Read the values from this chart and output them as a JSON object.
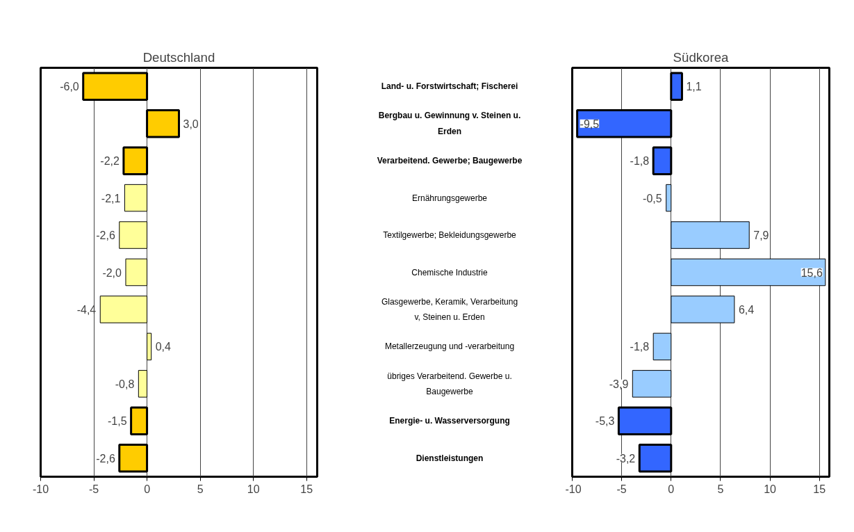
{
  "chart_data": [
    {
      "type": "bar",
      "orientation": "horizontal",
      "title": "Deutschland",
      "categories": [
        "Land- u. Forstwirtschaft; Fischerei",
        "Bergbau u. Gewinnung v. Steinen u. Erden",
        "Verarbeitend. Gewerbe; Baugewerbe",
        "Ernährungsgewerbe",
        "Textilgewerbe; Bekleidungsgewerbe",
        "Chemische Industrie",
        "Glasgewerbe, Keramik, Verarbeitung v, Steinen u. Erden",
        "Metallerzeugung und -verarbeitung",
        "übriges Verarbeitend. Gewerbe u. Baugewerbe",
        "Energie- u. Wasserversorgung",
        "Dienstleistungen"
      ],
      "values": [
        -6.0,
        3.0,
        -2.2,
        -2.1,
        -2.6,
        -2.0,
        -4.4,
        0.4,
        -0.8,
        -1.5,
        -2.6
      ],
      "colors": [
        "#ffcc00",
        "#ffcc00",
        "#ffcc00",
        "#ffff99",
        "#ffff99",
        "#ffff99",
        "#ffff99",
        "#ffff99",
        "#ffff99",
        "#ffcc00",
        "#ffcc00"
      ],
      "value_labels": [
        "-6,0",
        "3,0",
        "-2,2",
        "-2,1",
        "-2,6",
        "-2,0",
        "-4,4",
        "0,4",
        "-0,8",
        "-1,5",
        "-2,6"
      ],
      "xlim": [
        -10,
        16
      ],
      "xticks": [
        -10,
        -5,
        0,
        5,
        10,
        15
      ],
      "grid": "x",
      "tick_labels": "x"
    },
    {
      "type": "bar",
      "orientation": "horizontal",
      "title": "Südkorea",
      "categories": [
        "Land- u. Forstwirtschaft; Fischerei",
        "Bergbau u. Gewinnung v. Steinen u. Erden",
        "Verarbeitend. Gewerbe; Baugewerbe",
        "Ernährungsgewerbe",
        "Textilgewerbe; Bekleidungsgewerbe",
        "Chemische Industrie",
        "Glasgewerbe, Keramik, Verarbeitung v, Steinen u. Erden",
        "Metallerzeugung und -verarbeitung",
        "übriges Verarbeitend. Gewerbe u. Baugewerbe",
        "Energie- u. Wasserversorgung",
        "Dienstleistungen"
      ],
      "values": [
        1.1,
        -9.5,
        -1.8,
        -0.5,
        7.9,
        15.6,
        6.4,
        -1.8,
        -3.9,
        -5.3,
        -3.2
      ],
      "colors": [
        "#3366ff",
        "#3366ff",
        "#3366ff",
        "#99ccff",
        "#99ccff",
        "#99ccff",
        "#99ccff",
        "#99ccff",
        "#99ccff",
        "#3366ff",
        "#3366ff"
      ],
      "value_labels": [
        "1,1",
        "-9,5",
        "-1,8",
        "-0,5",
        "7,9",
        "15,6",
        "6,4",
        "-1,8",
        "-3,9",
        "-5,3",
        "-3,2"
      ],
      "xlim": [
        -10,
        16
      ],
      "xticks": [
        -10,
        -5,
        0,
        5,
        10,
        15
      ],
      "grid": "x"
    }
  ]
}
